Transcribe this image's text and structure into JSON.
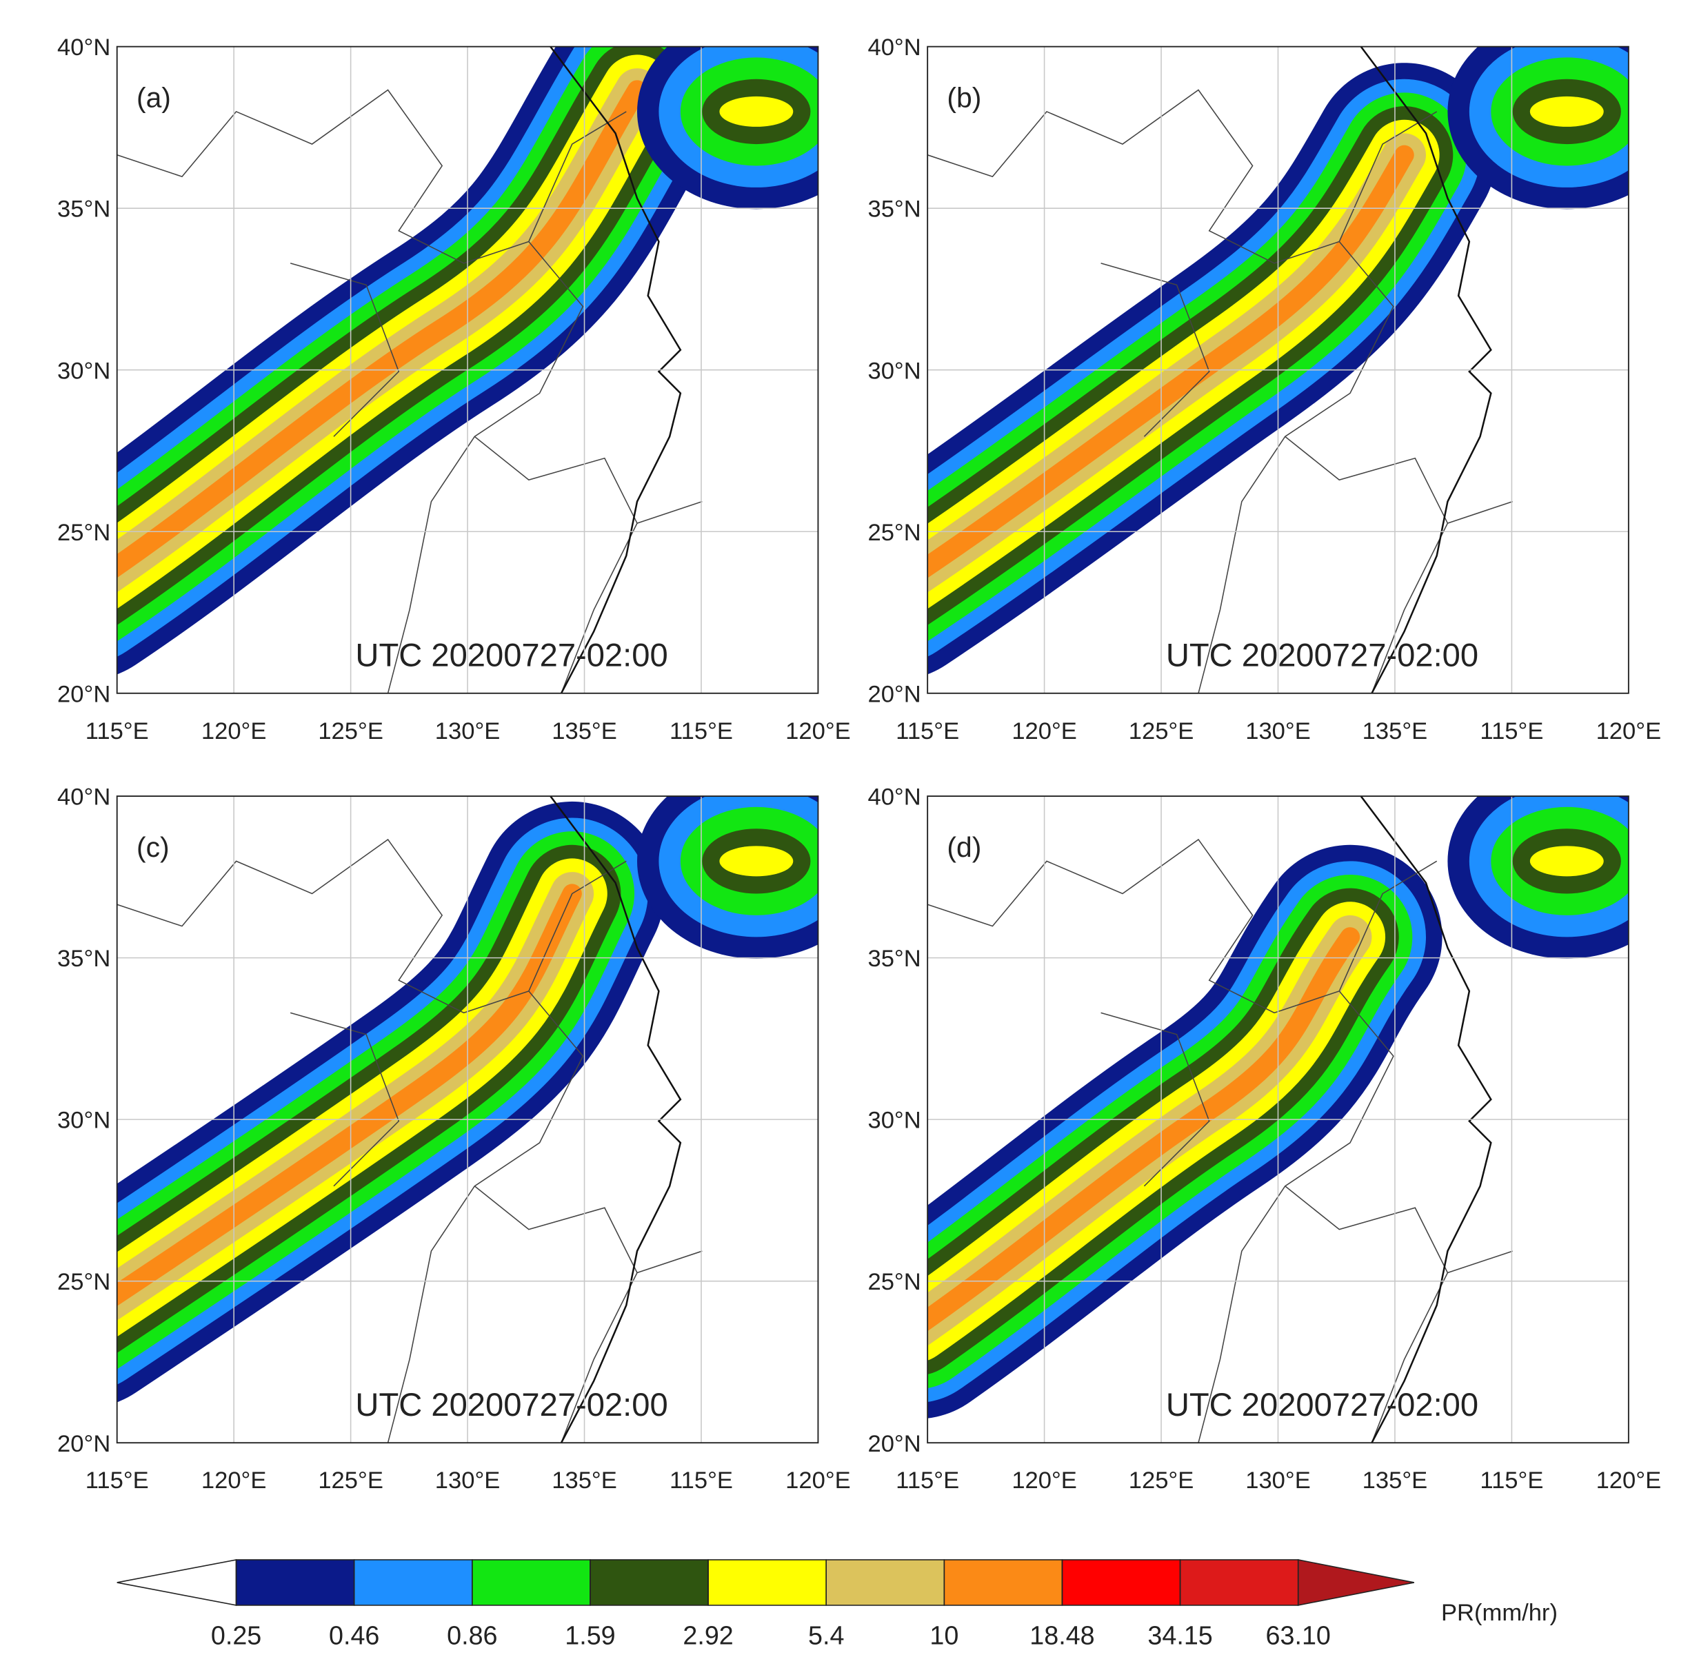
{
  "panels": [
    {
      "label": "(a)",
      "timestamp": "UTC 20200727-02:00"
    },
    {
      "label": "(b)",
      "timestamp": "UTC 20200727-02:00"
    },
    {
      "label": "(c)",
      "timestamp": "UTC 20200727-02:00"
    },
    {
      "label": "(d)",
      "timestamp": "UTC 20200727-02:00"
    }
  ],
  "lat_ticks": [
    "40°N",
    "35°N",
    "30°N",
    "25°N",
    "20°N"
  ],
  "lon_ticks": [
    "115°E",
    "120°E",
    "125°E",
    "130°E",
    "135°E",
    "115°E",
    "120°E"
  ],
  "colorbar": {
    "label": "PR(mm/hr)",
    "levels": [
      0.25,
      0.46,
      0.86,
      1.59,
      2.92,
      5.4,
      10,
      18.48,
      34.15,
      {
        "value": 63.1,
        "label": "63.10"
      }
    ],
    "colors": [
      "#0b1a8a",
      "#1e8fff",
      "#12e612",
      "#2f5510",
      "#ffff00",
      "#dcc35c",
      "#fb8a16",
      "#ff0000",
      "#dd1a1a"
    ],
    "over_color": "#b0181d"
  }
}
